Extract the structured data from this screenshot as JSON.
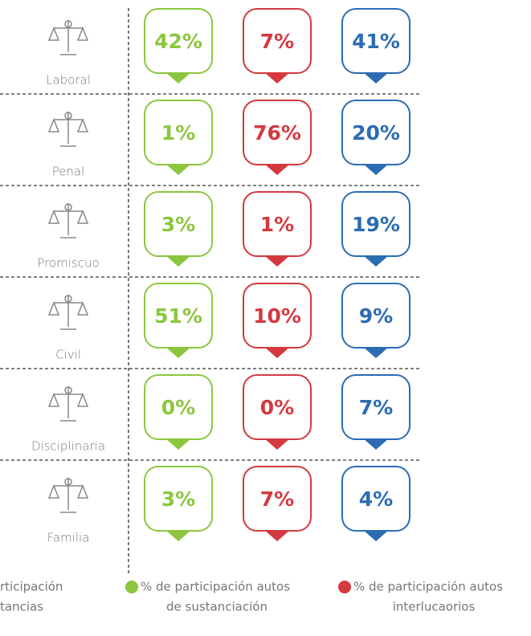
{
  "rows": [
    {
      "label": "Laboral",
      "values": [
        42,
        7,
        41
      ],
      "value_labels": [
        "42%",
        "7%",
        "41%"
      ]
    },
    {
      "label": "Penal",
      "values": [
        1,
        76,
        20
      ],
      "value_labels": [
        "1%",
        "76%",
        "20%"
      ]
    },
    {
      "label": "Promiscuo",
      "values": [
        3,
        1,
        19
      ],
      "value_labels": [
        "3%",
        "1%",
        "19%"
      ]
    },
    {
      "label": "Civil",
      "values": [
        51,
        10,
        9
      ],
      "value_labels": [
        "51%",
        "10%",
        "9%"
      ]
    },
    {
      "label": "Disciplinaria",
      "values": [
        0,
        0,
        7
      ],
      "value_labels": [
        "0%",
        "0%",
        "7%"
      ]
    },
    {
      "label": "Familia",
      "values": [
        3,
        7,
        4
      ],
      "value_labels": [
        "3%",
        "7%",
        "4%"
      ]
    }
  ],
  "column_colors": [
    "#8cc63f",
    "#d3393e",
    "#2b6cb3"
  ],
  "legend": [
    {
      "lines": [
        "rticipación",
        "tancias"
      ]
    },
    {
      "color": "#8cc63f",
      "lines": [
        "% de participación autos",
        "de sustanciación"
      ]
    },
    {
      "color": "#d3393e",
      "lines": [
        "% de participación autos",
        "interlucaorios"
      ]
    }
  ]
}
